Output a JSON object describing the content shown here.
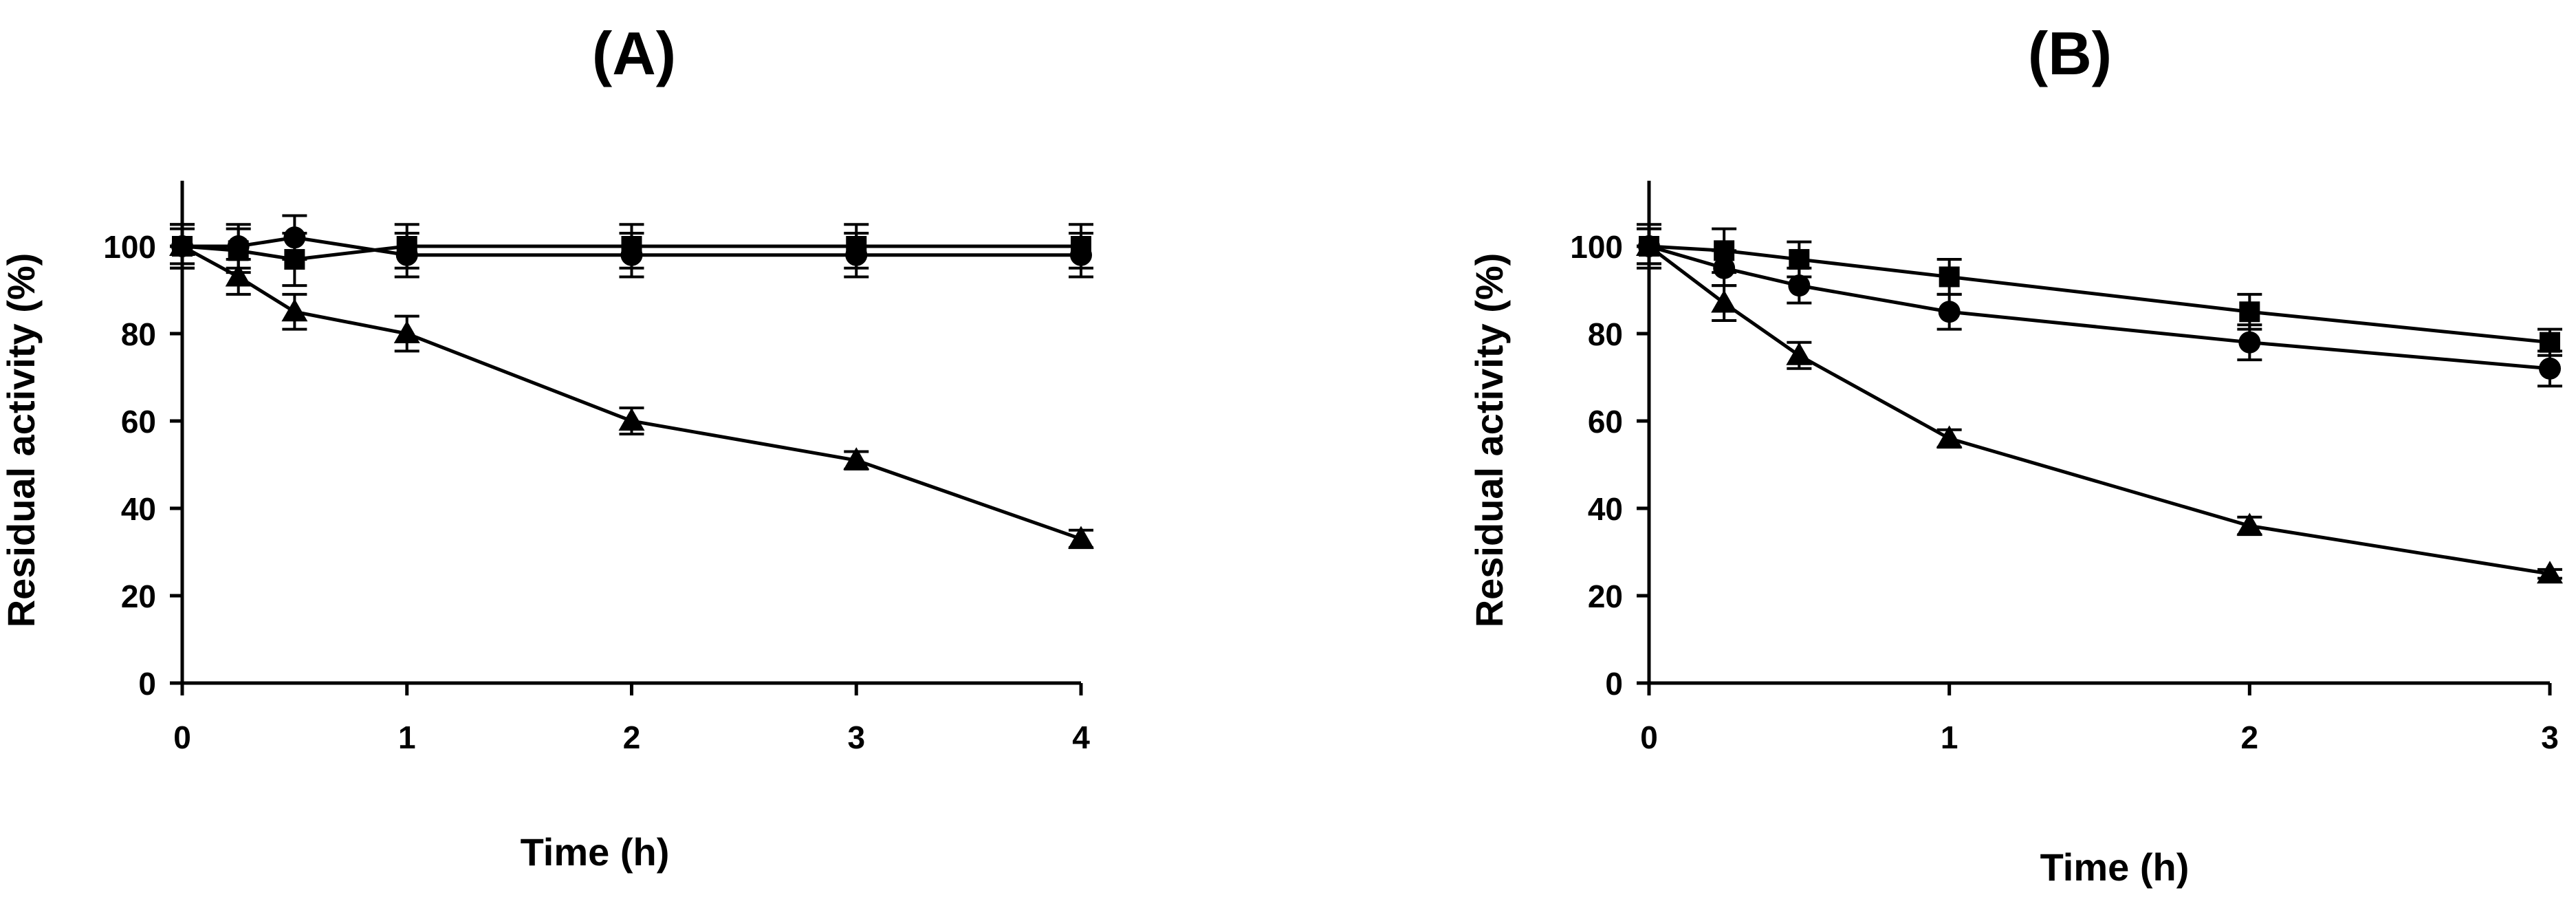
{
  "chart_data": [
    {
      "type": "line",
      "title": "(A)",
      "xlabel": "Time (h)",
      "ylabel": "Residual activity (%)",
      "xlim": [
        0,
        4
      ],
      "ylim": [
        0,
        115
      ],
      "xticks": [
        "0",
        "1",
        "2",
        "3",
        "4"
      ],
      "yticks": [
        "0",
        "20",
        "40",
        "60",
        "80",
        "100"
      ],
      "grid": false,
      "series": [
        {
          "marker": "square",
          "x": [
            0,
            0.25,
            0.5,
            1,
            2,
            3,
            4
          ],
          "y": [
            100,
            99,
            97,
            100,
            100,
            100,
            100
          ],
          "err": [
            5,
            5,
            6,
            5,
            5,
            5,
            5
          ]
        },
        {
          "marker": "circle",
          "x": [
            0,
            0.25,
            0.5,
            1,
            2,
            3,
            4
          ],
          "y": [
            100,
            100,
            102,
            98,
            98,
            98,
            98
          ],
          "err": [
            5,
            5,
            5,
            5,
            5,
            5,
            5
          ]
        },
        {
          "marker": "triangle",
          "x": [
            0,
            0.25,
            0.5,
            1,
            2,
            3,
            4
          ],
          "y": [
            100,
            93,
            85,
            80,
            60,
            51,
            33
          ],
          "err": [
            4,
            4,
            4,
            4,
            3,
            2,
            2
          ]
        }
      ]
    },
    {
      "type": "line",
      "title": "(B)",
      "xlabel": "Time (h)",
      "ylabel": "Residual activity (%)",
      "xlim": [
        0,
        3
      ],
      "ylim": [
        0,
        115
      ],
      "xticks": [
        "0",
        "1",
        "2",
        "3"
      ],
      "yticks": [
        "0",
        "20",
        "40",
        "60",
        "80",
        "100"
      ],
      "grid": false,
      "series": [
        {
          "marker": "square",
          "x": [
            0,
            0.25,
            0.5,
            1,
            2,
            3
          ],
          "y": [
            100,
            99,
            97,
            93,
            85,
            78
          ],
          "err": [
            5,
            5,
            4,
            4,
            4,
            3
          ]
        },
        {
          "marker": "circle",
          "x": [
            0,
            0.25,
            0.5,
            1,
            2,
            3
          ],
          "y": [
            100,
            95,
            91,
            85,
            78,
            72
          ],
          "err": [
            4,
            4,
            4,
            4,
            4,
            4
          ]
        },
        {
          "marker": "triangle",
          "x": [
            0,
            0.25,
            0.5,
            1,
            2,
            3
          ],
          "y": [
            100,
            87,
            75,
            56,
            36,
            25
          ],
          "err": [
            4,
            4,
            3,
            2,
            2,
            1
          ]
        }
      ]
    }
  ]
}
